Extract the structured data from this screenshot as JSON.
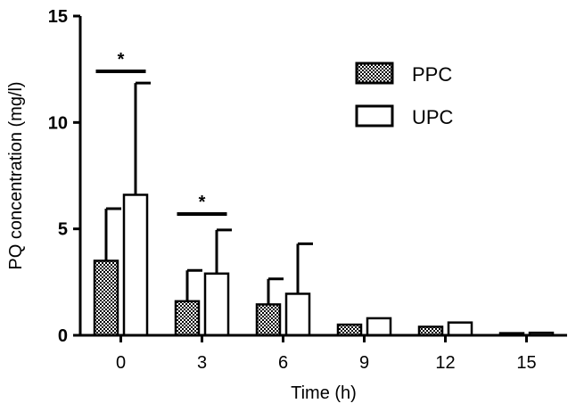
{
  "chart_data": {
    "type": "bar",
    "xlabel": "Time (h)",
    "ylabel": "PQ concentration (mg/l)",
    "ylim": [
      0,
      15
    ],
    "yticks": [
      0,
      5,
      10,
      15
    ],
    "categories": [
      "0",
      "3",
      "6",
      "9",
      "12",
      "15"
    ],
    "legend_position": "top-right",
    "series": [
      {
        "name": "PPC",
        "fill": "checkered",
        "values": [
          3.5,
          1.6,
          1.45,
          0.5,
          0.4,
          0.1
        ],
        "errors": [
          2.45,
          1.45,
          1.2,
          0.05,
          0.05,
          0.03
        ]
      },
      {
        "name": "UPC",
        "fill": "white",
        "values": [
          6.6,
          2.9,
          1.95,
          0.8,
          0.6,
          0.12
        ],
        "errors": [
          5.25,
          2.05,
          2.35,
          0.04,
          0.04,
          0.03
        ]
      }
    ],
    "annotations": [
      {
        "category_index": 0,
        "text": "*",
        "y": 12.4
      },
      {
        "category_index": 1,
        "text": "*",
        "y": 5.7
      }
    ]
  },
  "colors": {
    "ink": "#000000",
    "background": "#ffffff"
  }
}
